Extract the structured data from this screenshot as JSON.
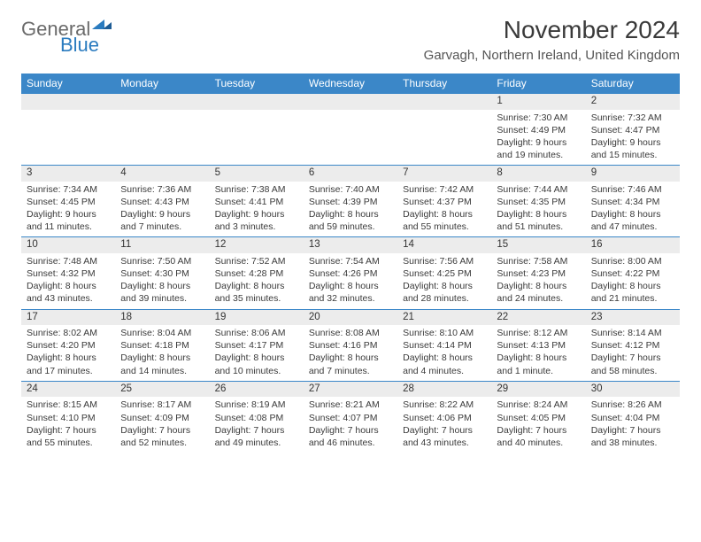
{
  "brand": {
    "word1": "General",
    "word2": "Blue"
  },
  "title": "November 2024",
  "subtitle": "Garvagh, Northern Ireland, United Kingdom",
  "colors": {
    "header_bg": "#3b87c8",
    "header_text": "#ffffff",
    "daynum_bg": "#ececec",
    "row_border": "#3b87c8",
    "text": "#3a3a3a"
  },
  "day_headers": [
    "Sunday",
    "Monday",
    "Tuesday",
    "Wednesday",
    "Thursday",
    "Friday",
    "Saturday"
  ],
  "weeks": [
    [
      {
        "n": "",
        "sunrise": "",
        "sunset": "",
        "daylight": ""
      },
      {
        "n": "",
        "sunrise": "",
        "sunset": "",
        "daylight": ""
      },
      {
        "n": "",
        "sunrise": "",
        "sunset": "",
        "daylight": ""
      },
      {
        "n": "",
        "sunrise": "",
        "sunset": "",
        "daylight": ""
      },
      {
        "n": "",
        "sunrise": "",
        "sunset": "",
        "daylight": ""
      },
      {
        "n": "1",
        "sunrise": "Sunrise: 7:30 AM",
        "sunset": "Sunset: 4:49 PM",
        "daylight": "Daylight: 9 hours and 19 minutes."
      },
      {
        "n": "2",
        "sunrise": "Sunrise: 7:32 AM",
        "sunset": "Sunset: 4:47 PM",
        "daylight": "Daylight: 9 hours and 15 minutes."
      }
    ],
    [
      {
        "n": "3",
        "sunrise": "Sunrise: 7:34 AM",
        "sunset": "Sunset: 4:45 PM",
        "daylight": "Daylight: 9 hours and 11 minutes."
      },
      {
        "n": "4",
        "sunrise": "Sunrise: 7:36 AM",
        "sunset": "Sunset: 4:43 PM",
        "daylight": "Daylight: 9 hours and 7 minutes."
      },
      {
        "n": "5",
        "sunrise": "Sunrise: 7:38 AM",
        "sunset": "Sunset: 4:41 PM",
        "daylight": "Daylight: 9 hours and 3 minutes."
      },
      {
        "n": "6",
        "sunrise": "Sunrise: 7:40 AM",
        "sunset": "Sunset: 4:39 PM",
        "daylight": "Daylight: 8 hours and 59 minutes."
      },
      {
        "n": "7",
        "sunrise": "Sunrise: 7:42 AM",
        "sunset": "Sunset: 4:37 PM",
        "daylight": "Daylight: 8 hours and 55 minutes."
      },
      {
        "n": "8",
        "sunrise": "Sunrise: 7:44 AM",
        "sunset": "Sunset: 4:35 PM",
        "daylight": "Daylight: 8 hours and 51 minutes."
      },
      {
        "n": "9",
        "sunrise": "Sunrise: 7:46 AM",
        "sunset": "Sunset: 4:34 PM",
        "daylight": "Daylight: 8 hours and 47 minutes."
      }
    ],
    [
      {
        "n": "10",
        "sunrise": "Sunrise: 7:48 AM",
        "sunset": "Sunset: 4:32 PM",
        "daylight": "Daylight: 8 hours and 43 minutes."
      },
      {
        "n": "11",
        "sunrise": "Sunrise: 7:50 AM",
        "sunset": "Sunset: 4:30 PM",
        "daylight": "Daylight: 8 hours and 39 minutes."
      },
      {
        "n": "12",
        "sunrise": "Sunrise: 7:52 AM",
        "sunset": "Sunset: 4:28 PM",
        "daylight": "Daylight: 8 hours and 35 minutes."
      },
      {
        "n": "13",
        "sunrise": "Sunrise: 7:54 AM",
        "sunset": "Sunset: 4:26 PM",
        "daylight": "Daylight: 8 hours and 32 minutes."
      },
      {
        "n": "14",
        "sunrise": "Sunrise: 7:56 AM",
        "sunset": "Sunset: 4:25 PM",
        "daylight": "Daylight: 8 hours and 28 minutes."
      },
      {
        "n": "15",
        "sunrise": "Sunrise: 7:58 AM",
        "sunset": "Sunset: 4:23 PM",
        "daylight": "Daylight: 8 hours and 24 minutes."
      },
      {
        "n": "16",
        "sunrise": "Sunrise: 8:00 AM",
        "sunset": "Sunset: 4:22 PM",
        "daylight": "Daylight: 8 hours and 21 minutes."
      }
    ],
    [
      {
        "n": "17",
        "sunrise": "Sunrise: 8:02 AM",
        "sunset": "Sunset: 4:20 PM",
        "daylight": "Daylight: 8 hours and 17 minutes."
      },
      {
        "n": "18",
        "sunrise": "Sunrise: 8:04 AM",
        "sunset": "Sunset: 4:18 PM",
        "daylight": "Daylight: 8 hours and 14 minutes."
      },
      {
        "n": "19",
        "sunrise": "Sunrise: 8:06 AM",
        "sunset": "Sunset: 4:17 PM",
        "daylight": "Daylight: 8 hours and 10 minutes."
      },
      {
        "n": "20",
        "sunrise": "Sunrise: 8:08 AM",
        "sunset": "Sunset: 4:16 PM",
        "daylight": "Daylight: 8 hours and 7 minutes."
      },
      {
        "n": "21",
        "sunrise": "Sunrise: 8:10 AM",
        "sunset": "Sunset: 4:14 PM",
        "daylight": "Daylight: 8 hours and 4 minutes."
      },
      {
        "n": "22",
        "sunrise": "Sunrise: 8:12 AM",
        "sunset": "Sunset: 4:13 PM",
        "daylight": "Daylight: 8 hours and 1 minute."
      },
      {
        "n": "23",
        "sunrise": "Sunrise: 8:14 AM",
        "sunset": "Sunset: 4:12 PM",
        "daylight": "Daylight: 7 hours and 58 minutes."
      }
    ],
    [
      {
        "n": "24",
        "sunrise": "Sunrise: 8:15 AM",
        "sunset": "Sunset: 4:10 PM",
        "daylight": "Daylight: 7 hours and 55 minutes."
      },
      {
        "n": "25",
        "sunrise": "Sunrise: 8:17 AM",
        "sunset": "Sunset: 4:09 PM",
        "daylight": "Daylight: 7 hours and 52 minutes."
      },
      {
        "n": "26",
        "sunrise": "Sunrise: 8:19 AM",
        "sunset": "Sunset: 4:08 PM",
        "daylight": "Daylight: 7 hours and 49 minutes."
      },
      {
        "n": "27",
        "sunrise": "Sunrise: 8:21 AM",
        "sunset": "Sunset: 4:07 PM",
        "daylight": "Daylight: 7 hours and 46 minutes."
      },
      {
        "n": "28",
        "sunrise": "Sunrise: 8:22 AM",
        "sunset": "Sunset: 4:06 PM",
        "daylight": "Daylight: 7 hours and 43 minutes."
      },
      {
        "n": "29",
        "sunrise": "Sunrise: 8:24 AM",
        "sunset": "Sunset: 4:05 PM",
        "daylight": "Daylight: 7 hours and 40 minutes."
      },
      {
        "n": "30",
        "sunrise": "Sunrise: 8:26 AM",
        "sunset": "Sunset: 4:04 PM",
        "daylight": "Daylight: 7 hours and 38 minutes."
      }
    ]
  ]
}
